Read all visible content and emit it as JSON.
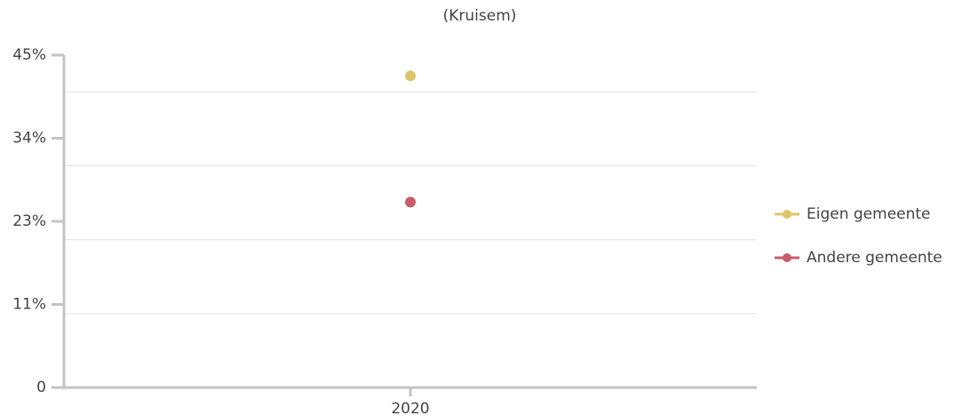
{
  "chart_data": {
    "type": "scatter",
    "subtitle": "(Kruisem)",
    "categories": [
      "2020"
    ],
    "series": [
      {
        "name": "Eigen gemeente",
        "color": "#dcc56a",
        "values": [
          42.2
        ]
      },
      {
        "name": "Andere gemeente",
        "color": "#c95c6b",
        "values": [
          25.1
        ]
      }
    ],
    "ylim": [
      0,
      45
    ],
    "yticks": [
      0,
      {
        "value": 11.25,
        "label": "11%"
      },
      {
        "value": 22.5,
        "label": "23%"
      },
      {
        "value": 33.75,
        "label": "34%"
      },
      {
        "value": 45,
        "label": "45%"
      }
    ],
    "ygrid": [
      10,
      20,
      30,
      40
    ],
    "legend": "right"
  }
}
